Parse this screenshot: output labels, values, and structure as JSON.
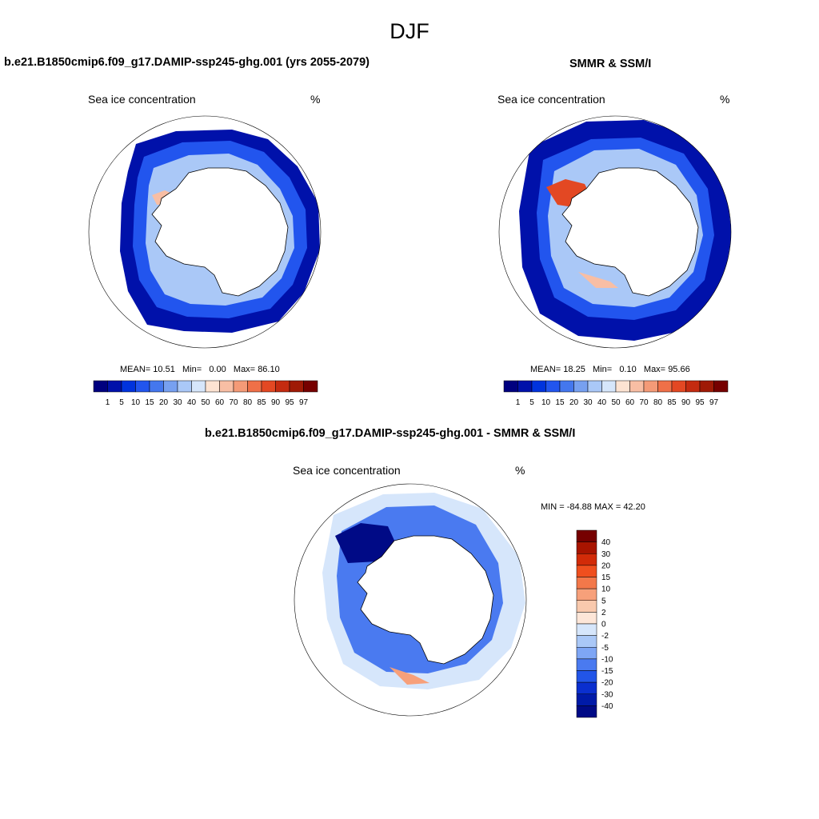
{
  "figure": {
    "title": "DJF"
  },
  "palette": {
    "seq": [
      "#00007f",
      "#0011aa",
      "#0033dd",
      "#2255ee",
      "#4477ee",
      "#77a0f0",
      "#aac8f7",
      "#d6e6fb",
      "#fde3d2",
      "#f8bea4",
      "#f49a77",
      "#ef7048",
      "#e34823",
      "#c42b10",
      "#9f1a06",
      "#760000"
    ],
    "diff": [
      "#760000",
      "#a81400",
      "#d22b08",
      "#ef4f1e",
      "#f3784a",
      "#f7a07a",
      "#f9c9ad",
      "#fde6d8",
      "#d6e6fb",
      "#aac8f7",
      "#7ea6f5",
      "#4a7af0",
      "#2255e8",
      "#0a2fcf",
      "#001aa8",
      "#000a86"
    ],
    "ocean": "#ffffff",
    "land": "#ffffff"
  },
  "panels": {
    "model": {
      "title": "b.e21.B1850cmip6.f09_g17.DAMIP-ssp245-ghg.001 (yrs 2055-2079)",
      "variable": "Sea ice concentration",
      "units": "%",
      "mean_label": "MEAN=",
      "mean_value": "10.51",
      "min_label": "Min=",
      "min_value": "0.00",
      "max_label": "Max=",
      "max_value": "86.10"
    },
    "obs": {
      "title": "SMMR & SSM/I",
      "variable": "Sea ice concentration",
      "units": "%",
      "mean_label": "MEAN=",
      "mean_value": "18.25",
      "min_label": "Min=",
      "min_value": "0.10",
      "max_label": "Max=",
      "max_value": "95.66"
    },
    "diff": {
      "title": "b.e21.B1850cmip6.f09_g17.DAMIP-ssp245-ghg.001 - SMMR & SSM/I",
      "variable": "Sea ice concentration",
      "units": "%",
      "minmax_text": "MIN = -84.88 MAX =  42.20"
    }
  },
  "colorbars": {
    "seq_ticks": [
      "1",
      "5",
      "10",
      "15",
      "20",
      "30",
      "40",
      "50",
      "60",
      "70",
      "80",
      "85",
      "90",
      "95",
      "97"
    ],
    "diff_ticks": [
      "40",
      "30",
      "20",
      "15",
      "10",
      "5",
      "2",
      "0",
      "-2",
      "-5",
      "-10",
      "-15",
      "-20",
      "-30",
      "-40"
    ]
  }
}
